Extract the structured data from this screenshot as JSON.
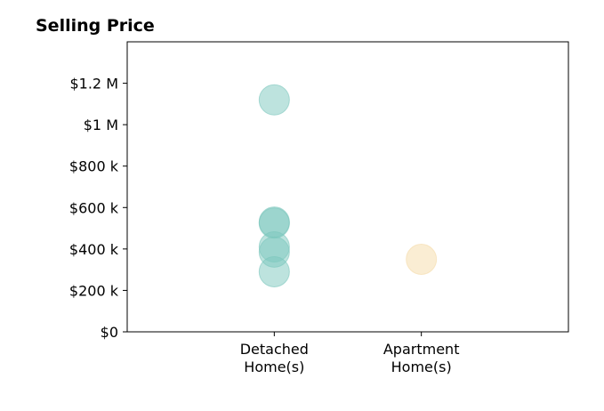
{
  "chart_data": {
    "type": "scatter",
    "title": "Selling Price",
    "xlabel": "",
    "ylabel": "",
    "categories": [
      [
        "Detached",
        "Home(s)"
      ],
      [
        "Apartment",
        "Home(s)"
      ]
    ],
    "ylim": [
      0,
      1400000
    ],
    "yticks": [
      {
        "value": 0,
        "label": "$0"
      },
      {
        "value": 200000,
        "label": "$200 k"
      },
      {
        "value": 400000,
        "label": "$400 k"
      },
      {
        "value": 600000,
        "label": "$600 k"
      },
      {
        "value": 800000,
        "label": "$800 k"
      },
      {
        "value": 1000000,
        "label": "$1 M"
      },
      {
        "value": 1200000,
        "label": "$1.2 M"
      }
    ],
    "grid": false,
    "legend": "none",
    "series": [
      {
        "category": 0,
        "color": "#7cc7bd",
        "values": [
          1120000,
          530000,
          525000,
          410000,
          385000,
          290000
        ]
      },
      {
        "category": 1,
        "color": "#f5dba8",
        "values": [
          350000
        ]
      }
    ]
  }
}
